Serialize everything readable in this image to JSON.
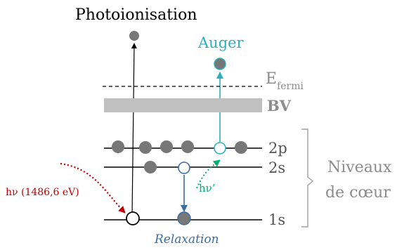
{
  "labels": {
    "photoionisation": "Photoionisation",
    "auger": "Auger",
    "e_fermi_main": "E",
    "e_fermi_sub": "fermi",
    "bv": "BV",
    "level_2p": "2p",
    "level_2s": "2s",
    "level_1s": "1s",
    "niveaux": "Niveaux",
    "de_coeur": "de cœur",
    "hv_incident": "hν (1486,6 eV)",
    "hv_prime": "hν’",
    "relaxation": "Relaxation"
  },
  "colors": {
    "black": "#000000",
    "gray_text": "#8c8c8c",
    "bv_band": "#c0c0c0",
    "electron": "#777777",
    "auger_cyan": "#2ab0c0",
    "relax_blue": "#3a6ea5",
    "hv_red": "#c00000",
    "hv_green": "#00b070"
  },
  "icons": {
    "electron": "filled-gray-circle",
    "hole": "hollow-circle"
  }
}
